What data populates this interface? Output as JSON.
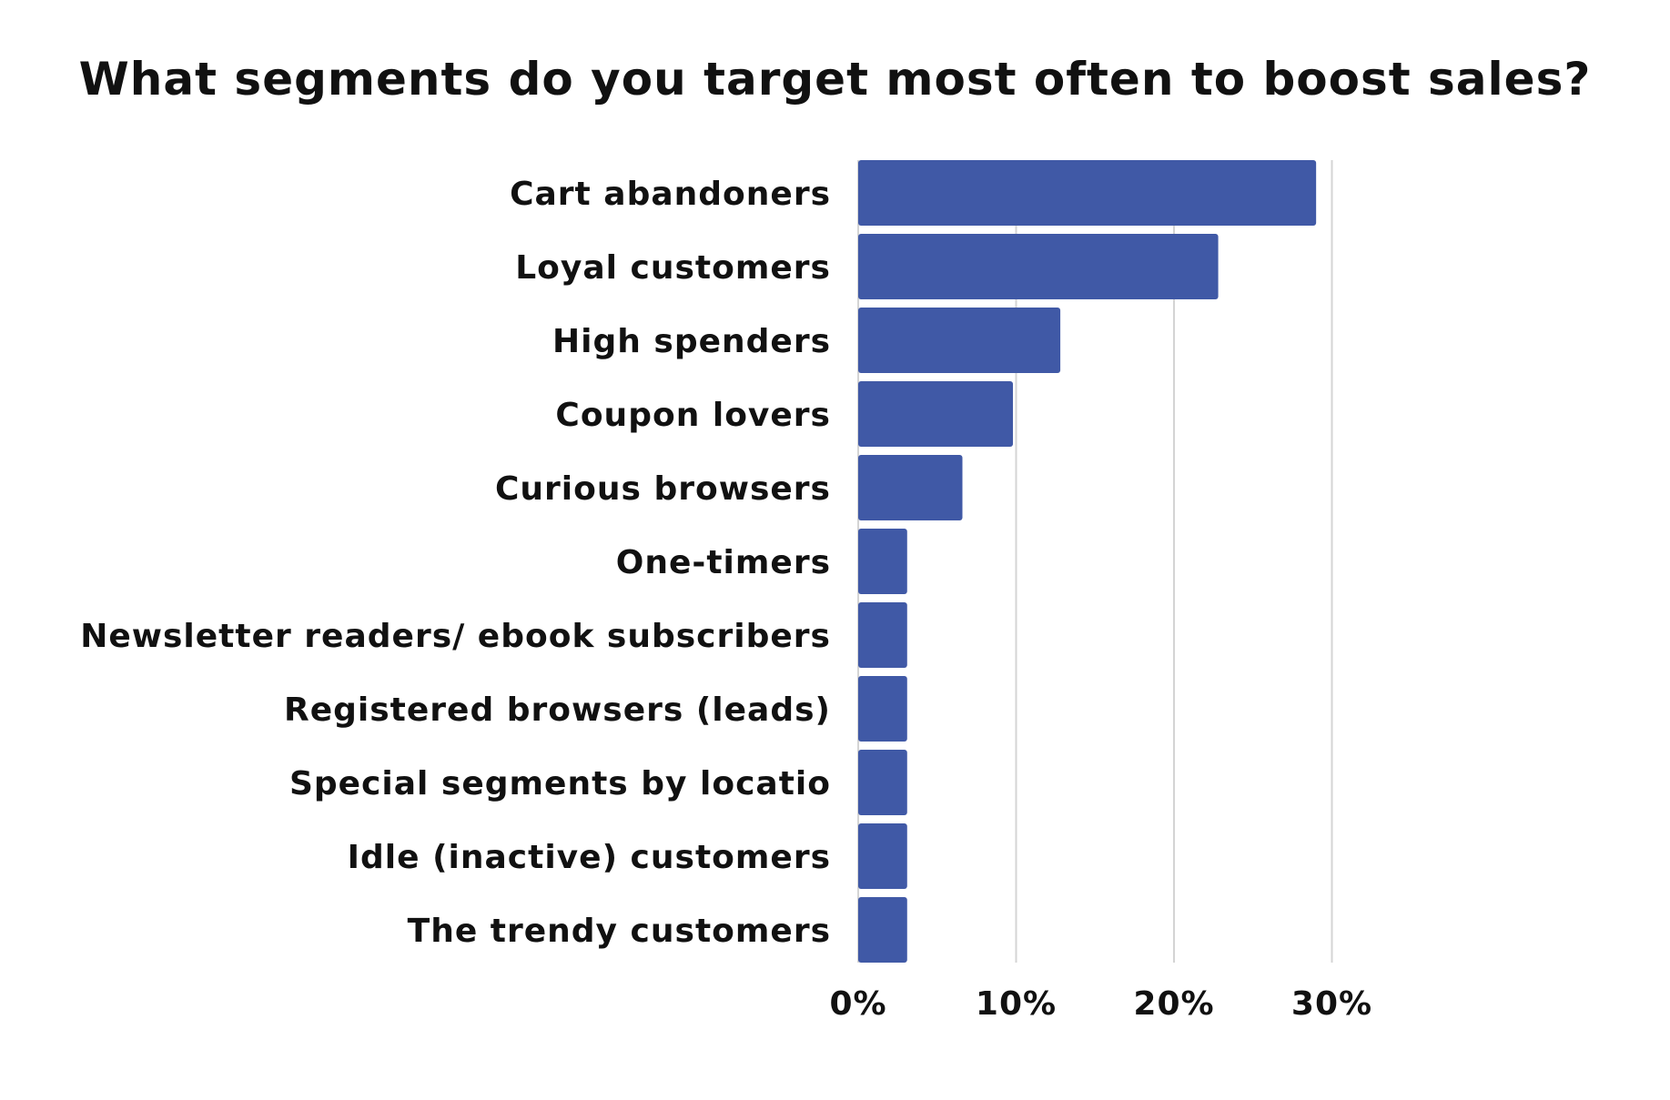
{
  "chart_data": {
    "type": "bar",
    "orientation": "horizontal",
    "title": "What segments do you target most often to boost sales?",
    "xlabel": "",
    "ylabel": "",
    "categories": [
      "Cart abandoners",
      "Loyal customers",
      "High spenders",
      "Coupon lovers",
      "Curious browsers",
      "One-timers",
      "Newsletter readers/ ebook subscribers",
      "Registered browsers (leads)",
      "Special segments by locatio",
      "Idle (inactive) customers",
      "The trendy customers"
    ],
    "values": [
      29,
      22.8,
      12.8,
      9.8,
      6.6,
      3.1,
      3.1,
      3.1,
      3.1,
      3.1,
      3.1
    ],
    "xlim": [
      0,
      30
    ],
    "xticks": [
      0,
      10,
      20,
      30
    ],
    "xtick_labels": [
      "0%",
      "10%",
      "20%",
      "30%"
    ],
    "unit": "%",
    "grid": "vertical",
    "bar_color": "#4059a6",
    "gridline_color": "#d4d4d4"
  }
}
